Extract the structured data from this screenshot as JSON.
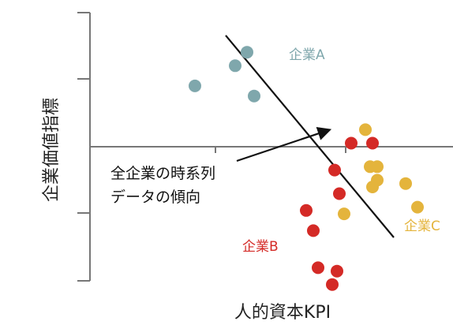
{
  "chart_data": {
    "type": "scatter",
    "title": "",
    "xlabel": "人的資本KPI",
    "ylabel": "企業価値指標",
    "xlim": [
      -5.5,
      5.5
    ],
    "ylim": [
      -4.1,
      4.1
    ],
    "grid": false,
    "legend": "none",
    "series": [
      {
        "name": "企業A",
        "color": "#7fa7ac",
        "points": [
          [
            -3.6,
            1.9
          ],
          [
            -1.9,
            2.5
          ],
          [
            -1.4,
            2.9
          ],
          [
            -1.1,
            1.6
          ]
        ]
      },
      {
        "name": "企業B",
        "color": "#d42a26",
        "points": [
          [
            1.1,
            -1.8
          ],
          [
            1.4,
            -2.4
          ],
          [
            1.6,
            -3.5
          ],
          [
            2.4,
            -3.6
          ],
          [
            2.3,
            -0.6
          ],
          [
            2.5,
            -1.3
          ],
          [
            3.0,
            0.2
          ],
          [
            3.9,
            0.2
          ],
          [
            2.2,
            -4.0
          ]
        ]
      },
      {
        "name": "企業C",
        "color": "#e4b43c",
        "points": [
          [
            3.6,
            0.6
          ],
          [
            3.8,
            -0.5
          ],
          [
            4.1,
            -0.5
          ],
          [
            4.1,
            -0.9
          ],
          [
            3.9,
            -1.1
          ],
          [
            2.7,
            -1.9
          ],
          [
            5.3,
            -1.0
          ],
          [
            5.8,
            -1.7
          ]
        ]
      }
    ],
    "trend_line": {
      "from": [
        -2.3,
        3.4
      ],
      "to": [
        4.8,
        -2.6
      ]
    },
    "annotation": {
      "lines": [
        "全企業の時系列",
        "データの傾向"
      ],
      "arrow_target": [
        2.1,
        0.6
      ]
    }
  },
  "labels": {
    "series_a": "企業A",
    "series_b": "企業B",
    "series_c": "企業C",
    "annotation_line1": "全企業の時系列",
    "annotation_line2": "データの傾向"
  }
}
